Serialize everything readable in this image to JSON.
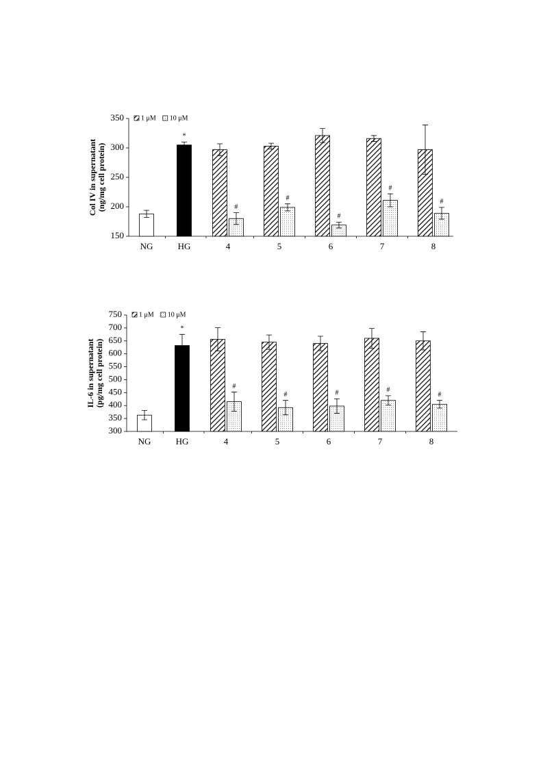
{
  "chart_data": [
    {
      "type": "bar",
      "ylabel": [
        "Col IV in supernatant",
        "(ng/mg cell protein)"
      ],
      "categories": [
        "NG",
        "HG",
        "4",
        "5",
        "6",
        "7",
        "8"
      ],
      "values": [
        188,
        305,
        null,
        null,
        null,
        null,
        null
      ],
      "errors": [
        6,
        5,
        null,
        null,
        null,
        null,
        null
      ],
      "colors": [
        "#ffffff",
        "#000000",
        null,
        null,
        null,
        null,
        null
      ],
      "marks": [
        null,
        "*",
        null,
        null,
        null,
        null,
        null
      ],
      "series": [
        {
          "name": "1 μM",
          "pattern": "hatch",
          "values": [
            null,
            null,
            297,
            303,
            321,
            316,
            297
          ],
          "errors": [
            null,
            null,
            10,
            5,
            12,
            5,
            42
          ],
          "marks": [
            null,
            null,
            null,
            null,
            null,
            null,
            null
          ]
        },
        {
          "name": "10 μM",
          "pattern": "dots",
          "values": [
            null,
            null,
            180,
            199,
            169,
            211,
            189
          ],
          "errors": [
            null,
            null,
            10,
            6,
            5,
            11,
            10
          ],
          "marks": [
            null,
            null,
            "#",
            "#",
            "#",
            "#",
            "#"
          ]
        }
      ],
      "ylim": [
        150,
        350
      ],
      "yticks": [
        150,
        200,
        250,
        300,
        350
      ]
    },
    {
      "type": "bar",
      "ylabel": [
        "IL-6 in supernatant",
        "(pg/mg cell protein)"
      ],
      "categories": [
        "NG",
        "HG",
        "4",
        "5",
        "6",
        "7",
        "8"
      ],
      "values": [
        363,
        632,
        null,
        null,
        null,
        null,
        null
      ],
      "errors": [
        18,
        43,
        null,
        null,
        null,
        null,
        null
      ],
      "colors": [
        "#ffffff",
        "#000000",
        null,
        null,
        null,
        null,
        null
      ],
      "marks": [
        null,
        "*",
        null,
        null,
        null,
        null,
        null
      ],
      "series": [
        {
          "name": "1 μM",
          "pattern": "hatch",
          "values": [
            null,
            null,
            656,
            645,
            640,
            660,
            650
          ],
          "errors": [
            null,
            null,
            45,
            28,
            28,
            38,
            35
          ],
          "marks": [
            null,
            null,
            null,
            null,
            null,
            null,
            null
          ]
        },
        {
          "name": "10 μM",
          "pattern": "dots",
          "values": [
            null,
            null,
            415,
            392,
            398,
            420,
            405
          ],
          "errors": [
            null,
            null,
            37,
            28,
            28,
            18,
            15
          ],
          "marks": [
            null,
            null,
            "#",
            "#",
            "#",
            "#",
            "#"
          ]
        }
      ],
      "ylim": [
        300,
        750
      ],
      "yticks": [
        300,
        350,
        400,
        450,
        500,
        550,
        600,
        650,
        700,
        750
      ]
    }
  ]
}
